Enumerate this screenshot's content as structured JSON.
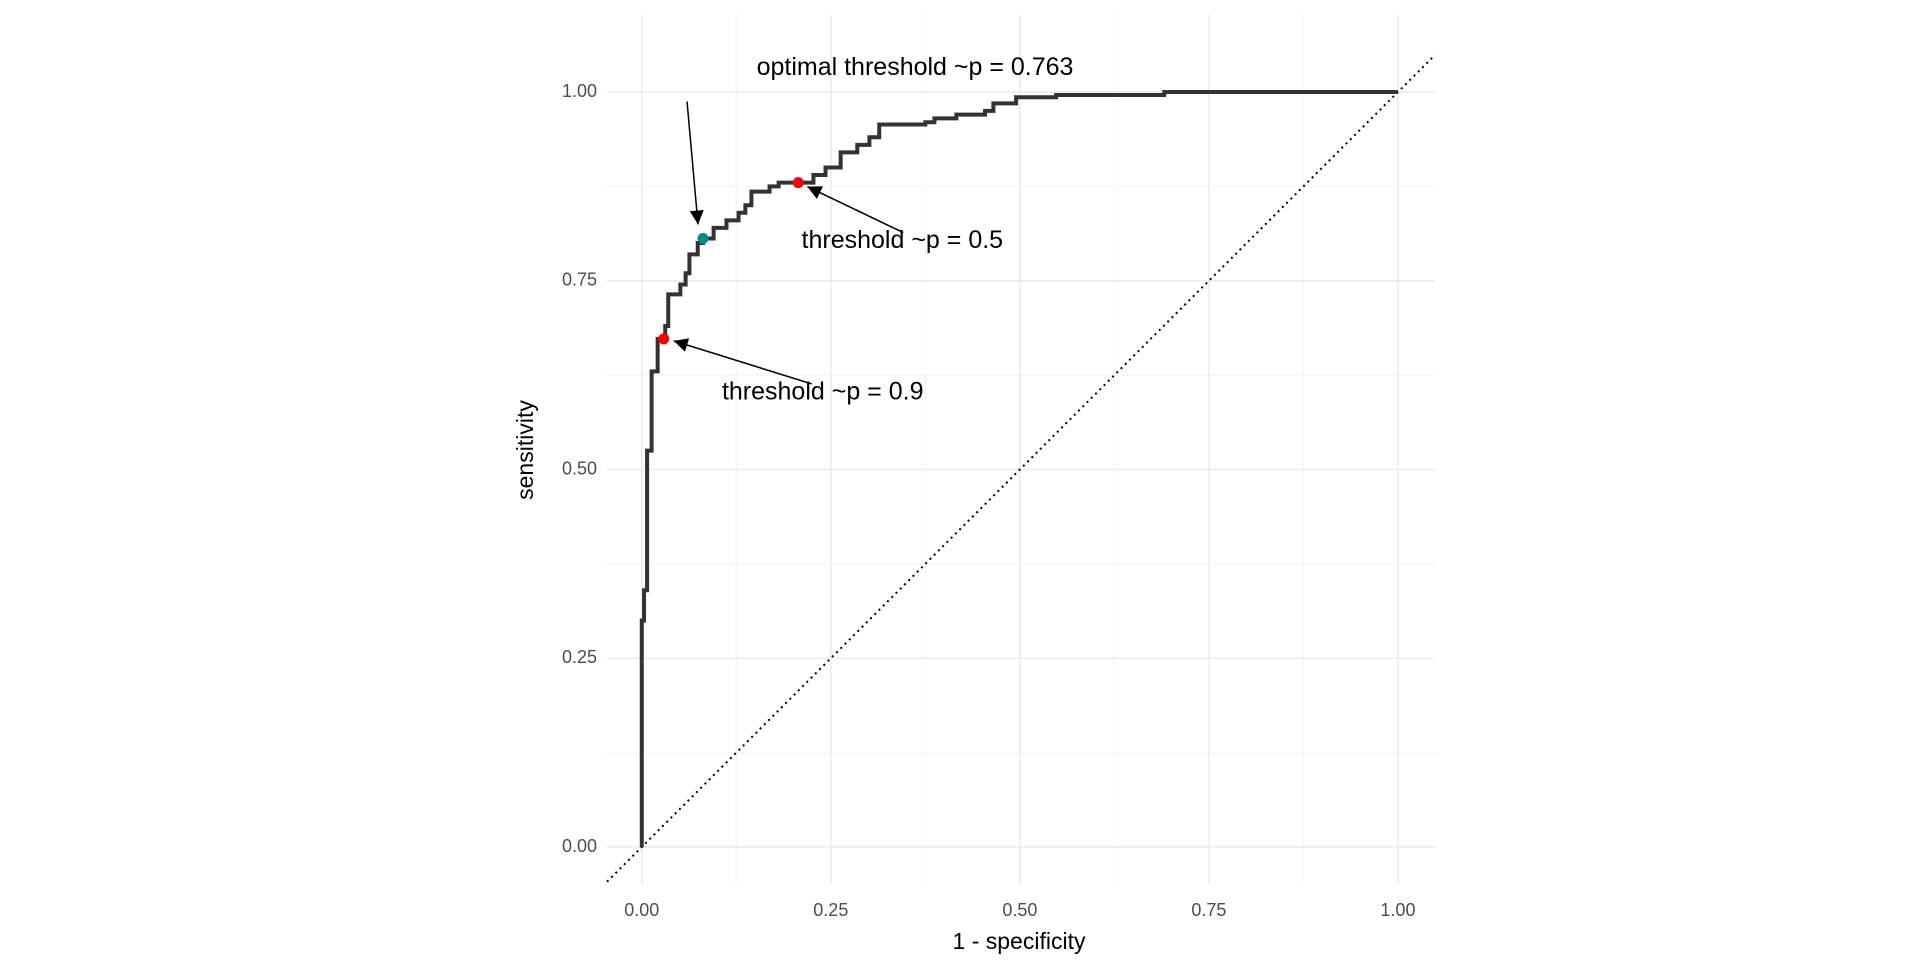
{
  "chart_data": {
    "type": "line",
    "x_label": "1 - specificity",
    "y_label": "sensitivity",
    "xlim": [
      -0.046,
      1.049
    ],
    "ylim": [
      -0.049,
      1.102
    ],
    "xticks": [
      {
        "value": 0,
        "label": "0.00"
      },
      {
        "value": 0.25,
        "label": "0.25"
      },
      {
        "value": 0.5,
        "label": "0.50"
      },
      {
        "value": 0.75,
        "label": "0.75"
      },
      {
        "value": 1,
        "label": "1.00"
      }
    ],
    "yticks": [
      {
        "value": 0,
        "label": "0.00"
      },
      {
        "value": 0.25,
        "label": "0.25"
      },
      {
        "value": 0.5,
        "label": "0.50"
      },
      {
        "value": 0.75,
        "label": "0.75"
      },
      {
        "value": 1,
        "label": "1.00"
      }
    ],
    "minor_xticks": [
      0.125,
      0.375,
      0.625,
      0.875
    ],
    "minor_yticks": [
      0.125,
      0.375,
      0.625,
      0.875
    ],
    "grid": true,
    "series": [
      {
        "color": "#333333",
        "x": [
          0,
          0,
          0.003,
          0.003,
          0.007,
          0.007,
          0.013,
          0.013,
          0.021,
          0.021,
          0.031,
          0.031,
          0.035,
          0.035,
          0.051,
          0.051,
          0.058,
          0.058,
          0.063,
          0.063,
          0.074,
          0.074,
          0.081,
          0.081,
          0.095,
          0.095,
          0.112,
          0.112,
          0.128,
          0.128,
          0.137,
          0.137,
          0.145,
          0.145,
          0.169,
          0.169,
          0.181,
          0.181,
          0.227,
          0.227,
          0.243,
          0.243,
          0.263,
          0.263,
          0.285,
          0.285,
          0.301,
          0.301,
          0.314,
          0.314,
          0.375,
          0.375,
          0.387,
          0.387,
          0.416,
          0.416,
          0.454,
          0.454,
          0.465,
          0.465,
          0.495,
          0.495,
          0.548,
          0.548,
          0.691,
          0.691,
          1
        ],
        "values": [
          0,
          0.3,
          0.3,
          0.34,
          0.34,
          0.525,
          0.525,
          0.63,
          0.63,
          0.673,
          0.673,
          0.69,
          0.69,
          0.732,
          0.732,
          0.745,
          0.745,
          0.76,
          0.76,
          0.785,
          0.785,
          0.8,
          0.8,
          0.806,
          0.806,
          0.82,
          0.82,
          0.83,
          0.83,
          0.84,
          0.84,
          0.85,
          0.85,
          0.868,
          0.868,
          0.875,
          0.875,
          0.88,
          0.88,
          0.89,
          0.89,
          0.9,
          0.9,
          0.92,
          0.92,
          0.93,
          0.93,
          0.94,
          0.94,
          0.957,
          0.957,
          0.96,
          0.96,
          0.965,
          0.965,
          0.97,
          0.97,
          0.975,
          0.975,
          0.985,
          0.985,
          0.993,
          0.993,
          0.996,
          0.996,
          1,
          1
        ]
      }
    ],
    "points": [
      {
        "label": "optimal threshold ~p = 0.763",
        "x": 0.081,
        "y": 0.806,
        "color": "#008b8b"
      },
      {
        "label": "threshold ~p = 0.5",
        "x": 0.207,
        "y": 0.88,
        "color": "#ff0000"
      },
      {
        "label": "threshold ~p = 0.9",
        "x": 0.029,
        "y": 0.673,
        "color": "#ff0000"
      }
    ]
  }
}
